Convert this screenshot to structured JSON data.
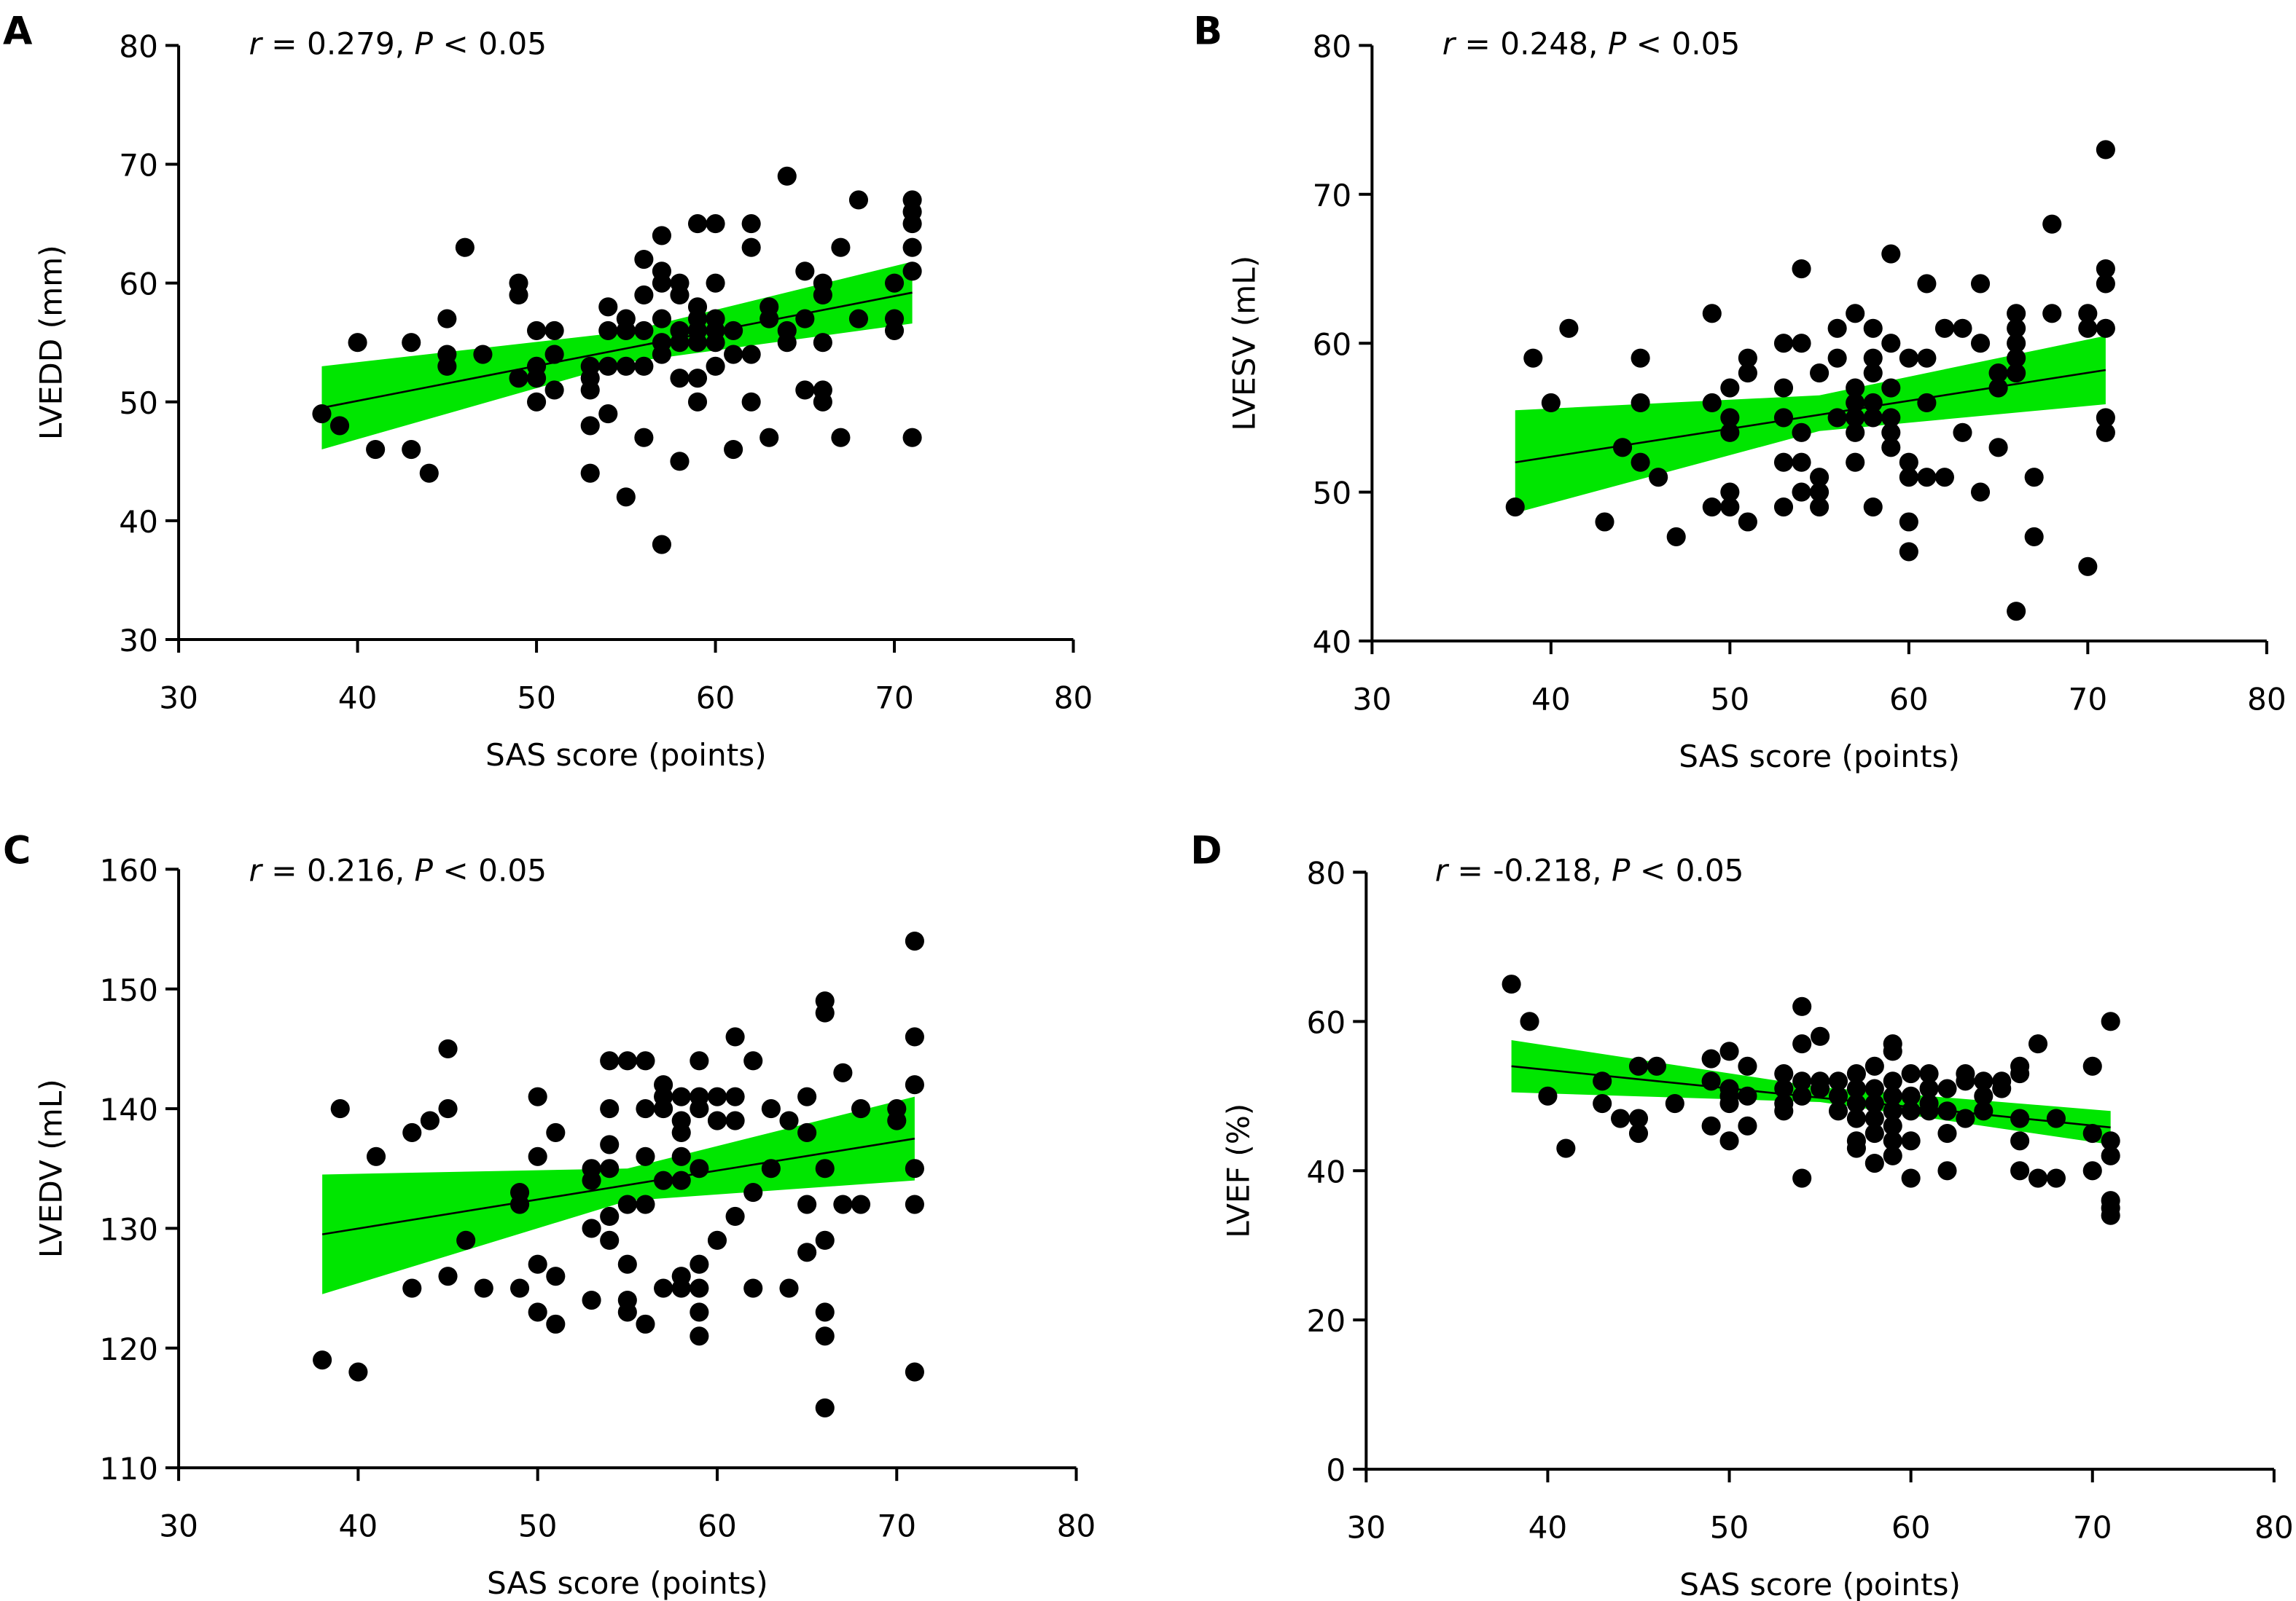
{
  "chart_data": [
    {
      "type": "scatter",
      "panel_label": "A",
      "annotation": [
        {
          "text": "r",
          "italic": true
        },
        {
          "text": " = 0.279, "
        },
        {
          "text": "P",
          "italic": true
        },
        {
          "text": " < 0.05"
        }
      ],
      "x_label": "SAS score (points)",
      "y_label": "LVEDD (mm)",
      "xlim": [
        30,
        80
      ],
      "xticks": [
        30,
        40,
        50,
        60,
        70,
        80
      ],
      "ylim": [
        30,
        80
      ],
      "yticks": [
        30,
        40,
        50,
        60,
        70,
        80
      ],
      "color": "#000000",
      "band_color": "#00e600",
      "x": [
        38,
        39,
        40,
        41,
        43,
        43,
        44,
        45,
        45,
        45,
        46,
        47,
        49,
        49,
        49,
        50,
        50,
        50,
        50,
        51,
        51,
        51,
        53,
        53,
        53,
        53,
        53,
        54,
        54,
        54,
        54,
        55,
        55,
        55,
        55,
        56,
        56,
        56,
        56,
        56,
        57,
        57,
        57,
        57,
        57,
        57,
        57,
        58,
        58,
        58,
        58,
        58,
        58,
        59,
        59,
        59,
        59,
        59,
        59,
        59,
        60,
        60,
        60,
        60,
        60,
        60,
        61,
        61,
        61,
        62,
        62,
        62,
        62,
        63,
        63,
        63,
        64,
        64,
        64,
        65,
        65,
        65,
        66,
        66,
        66,
        66,
        66,
        67,
        67,
        68,
        68,
        70,
        70,
        70,
        71,
        71,
        71,
        71,
        71,
        71
      ],
      "values": [
        49,
        48,
        55,
        46,
        55,
        46,
        44,
        57,
        54,
        53,
        63,
        54,
        60,
        59,
        52,
        56,
        53,
        52,
        50,
        56,
        54,
        51,
        53,
        52,
        51,
        48,
        44,
        58,
        56,
        53,
        49,
        57,
        56,
        53,
        42,
        62,
        59,
        56,
        53,
        47,
        64,
        61,
        60,
        57,
        55,
        54,
        38,
        60,
        59,
        56,
        55,
        52,
        45,
        65,
        58,
        57,
        56,
        55,
        52,
        50,
        65,
        60,
        57,
        56,
        55,
        53,
        56,
        54,
        46,
        65,
        63,
        54,
        50,
        58,
        57,
        47,
        69,
        56,
        55,
        61,
        57,
        51,
        60,
        59,
        55,
        51,
        50,
        63,
        47,
        67,
        57,
        60,
        57,
        56,
        67,
        66,
        65,
        63,
        61,
        47
      ],
      "fit_x": [
        38,
        71
      ],
      "fit_y": [
        49.5,
        59.2
      ],
      "band_x": [
        38,
        55,
        71
      ],
      "band_lower": [
        46,
        53.3,
        56.6
      ],
      "band_upper": [
        53,
        55.9,
        61.8
      ]
    },
    {
      "type": "scatter",
      "panel_label": "B",
      "annotation": [
        {
          "text": "r",
          "italic": true
        },
        {
          "text": " = 0.248, "
        },
        {
          "text": "P",
          "italic": true
        },
        {
          "text": " < 0.05"
        }
      ],
      "x_label": "SAS score (points)",
      "y_label": "LVESV (mL)",
      "xlim": [
        30,
        80
      ],
      "xticks": [
        30,
        40,
        50,
        60,
        70,
        80
      ],
      "ylim": [
        40,
        80
      ],
      "yticks": [
        40,
        50,
        60,
        70,
        80
      ],
      "color": "#000000",
      "band_color": "#00e600",
      "x": [
        38,
        39,
        40,
        41,
        43,
        44,
        45,
        45,
        45,
        46,
        47,
        49,
        49,
        49,
        50,
        50,
        50,
        50,
        50,
        51,
        51,
        51,
        53,
        53,
        53,
        53,
        53,
        54,
        54,
        54,
        54,
        54,
        55,
        55,
        55,
        55,
        56,
        56,
        56,
        57,
        57,
        57,
        57,
        57,
        57,
        58,
        58,
        58,
        58,
        58,
        58,
        59,
        59,
        59,
        59,
        59,
        59,
        60,
        60,
        60,
        60,
        60,
        61,
        61,
        61,
        61,
        62,
        62,
        63,
        63,
        64,
        64,
        64,
        65,
        65,
        65,
        66,
        66,
        66,
        66,
        66,
        66,
        67,
        67,
        68,
        68,
        70,
        70,
        70,
        71,
        71,
        71,
        71,
        71,
        71
      ],
      "values": [
        49,
        59,
        56,
        61,
        48,
        53,
        59,
        56,
        52,
        51,
        47,
        62,
        56,
        49,
        57,
        55,
        54,
        50,
        49,
        59,
        58,
        48,
        60,
        57,
        55,
        52,
        49,
        65,
        60,
        54,
        52,
        50,
        58,
        51,
        50,
        49,
        61,
        59,
        55,
        62,
        57,
        56,
        55,
        54,
        52,
        61,
        59,
        58,
        56,
        55,
        49,
        66,
        60,
        57,
        55,
        54,
        53,
        59,
        52,
        51,
        48,
        46,
        64,
        59,
        56,
        51,
        61,
        51,
        61,
        54,
        64,
        60,
        50,
        58,
        57,
        53,
        62,
        61,
        60,
        59,
        58,
        42,
        51,
        47,
        68,
        62,
        62,
        61,
        45,
        73,
        65,
        64,
        61,
        55,
        54
      ],
      "fit_x": [
        38,
        71
      ],
      "fit_y": [
        52,
        58.2
      ],
      "band_x": [
        38,
        55,
        71
      ],
      "band_lower": [
        48.6,
        54.1,
        55.9
      ],
      "band_upper": [
        55.5,
        56.5,
        60.5
      ]
    },
    {
      "type": "scatter",
      "panel_label": "C",
      "annotation": [
        {
          "text": "r",
          "italic": true
        },
        {
          "text": " = 0.216, "
        },
        {
          "text": "P",
          "italic": true
        },
        {
          "text": " < 0.05"
        }
      ],
      "x_label": "SAS score (points)",
      "y_label": "LVEDV (mL)",
      "xlim": [
        30,
        80
      ],
      "xticks": [
        30,
        40,
        50,
        60,
        70,
        80
      ],
      "ylim": [
        110,
        160
      ],
      "yticks": [
        110,
        120,
        130,
        140,
        150,
        160
      ],
      "color": "#000000",
      "band_color": "#00e600",
      "x": [
        38,
        39,
        40,
        41,
        43,
        43,
        44,
        45,
        45,
        45,
        46,
        47,
        49,
        49,
        49,
        50,
        50,
        50,
        50,
        51,
        51,
        51,
        53,
        53,
        53,
        53,
        54,
        54,
        54,
        54,
        54,
        54,
        55,
        55,
        55,
        55,
        55,
        56,
        56,
        56,
        56,
        56,
        57,
        57,
        57,
        57,
        57,
        58,
        58,
        58,
        58,
        58,
        58,
        58,
        59,
        59,
        59,
        59,
        59,
        59,
        59,
        59,
        60,
        60,
        60,
        61,
        61,
        61,
        61,
        62,
        62,
        62,
        63,
        63,
        64,
        64,
        65,
        65,
        65,
        65,
        66,
        66,
        66,
        66,
        66,
        66,
        66,
        67,
        67,
        68,
        68,
        70,
        70,
        71,
        71,
        71,
        71,
        71,
        71
      ],
      "values": [
        119,
        140,
        118,
        136,
        138,
        125,
        139,
        145,
        140,
        126,
        129,
        125,
        133,
        132,
        125,
        141,
        136,
        127,
        123,
        138,
        126,
        122,
        135,
        134,
        130,
        124,
        144,
        140,
        137,
        135,
        131,
        129,
        144,
        132,
        127,
        124,
        123,
        144,
        140,
        136,
        132,
        122,
        142,
        141,
        140,
        134,
        125,
        141,
        139,
        138,
        136,
        134,
        126,
        125,
        144,
        141,
        140,
        135,
        127,
        125,
        123,
        121,
        141,
        139,
        129,
        146,
        141,
        139,
        131,
        144,
        133,
        125,
        140,
        135,
        139,
        125,
        141,
        138,
        132,
        128,
        149,
        148,
        135,
        129,
        123,
        121,
        115,
        143,
        132,
        140,
        132,
        140,
        139,
        154,
        146,
        142,
        135,
        132,
        118
      ],
      "fit_x": [
        38,
        71
      ],
      "fit_y": [
        129.5,
        137.5
      ],
      "band_x": [
        38,
        55,
        71
      ],
      "band_lower": [
        124.5,
        132.3,
        134
      ],
      "band_upper": [
        134.5,
        135,
        141
      ]
    },
    {
      "type": "scatter",
      "panel_label": "D",
      "annotation": [
        {
          "text": "r",
          "italic": true
        },
        {
          "text": " = -0.218, "
        },
        {
          "text": "P",
          "italic": true
        },
        {
          "text": " < 0.05"
        }
      ],
      "x_label": "SAS score (points)",
      "y_label": "LVEF (%)",
      "xlim": [
        30,
        80
      ],
      "xticks": [
        30,
        40,
        50,
        60,
        70,
        80
      ],
      "ylim": [
        0,
        80
      ],
      "yticks": [
        0,
        20,
        40,
        60,
        80
      ],
      "color": "#000000",
      "band_color": "#00e600",
      "x": [
        38,
        39,
        40,
        41,
        43,
        43,
        44,
        45,
        45,
        45,
        46,
        47,
        49,
        49,
        49,
        50,
        50,
        50,
        50,
        50,
        51,
        51,
        51,
        53,
        53,
        53,
        53,
        54,
        54,
        54,
        54,
        54,
        55,
        55,
        55,
        56,
        56,
        56,
        57,
        57,
        57,
        57,
        57,
        57,
        58,
        58,
        58,
        58,
        58,
        58,
        59,
        59,
        59,
        59,
        59,
        59,
        59,
        59,
        60,
        60,
        60,
        60,
        60,
        61,
        61,
        61,
        61,
        62,
        62,
        62,
        62,
        63,
        63,
        63,
        64,
        64,
        64,
        65,
        65,
        66,
        66,
        66,
        66,
        66,
        67,
        67,
        68,
        68,
        70,
        70,
        70,
        71,
        71,
        71,
        71,
        71,
        71
      ],
      "values": [
        65,
        60,
        50,
        43,
        52,
        49,
        47,
        54,
        47,
        45,
        54,
        49,
        55,
        52,
        46,
        56,
        51,
        50,
        49,
        44,
        54,
        50,
        46,
        53,
        51,
        49,
        48,
        62,
        57,
        52,
        50,
        39,
        58,
        52,
        51,
        52,
        50,
        48,
        53,
        51,
        49,
        47,
        44,
        43,
        54,
        51,
        49,
        47,
        45,
        41,
        57,
        56,
        52,
        50,
        48,
        46,
        44,
        42,
        53,
        50,
        48,
        44,
        39,
        53,
        51,
        49,
        48,
        51,
        48,
        45,
        40,
        53,
        52,
        47,
        52,
        50,
        48,
        52,
        51,
        54,
        53,
        47,
        44,
        40,
        57,
        39,
        47,
        39,
        54,
        45,
        40,
        60,
        44,
        42,
        36,
        35,
        34
      ],
      "fit_x": [
        38,
        71
      ],
      "fit_y": [
        54,
        45.8
      ],
      "band_x": [
        38,
        55,
        71
      ],
      "band_lower": [
        50.5,
        49.2,
        43.5
      ],
      "band_upper": [
        57.5,
        51.2,
        48
      ]
    }
  ]
}
